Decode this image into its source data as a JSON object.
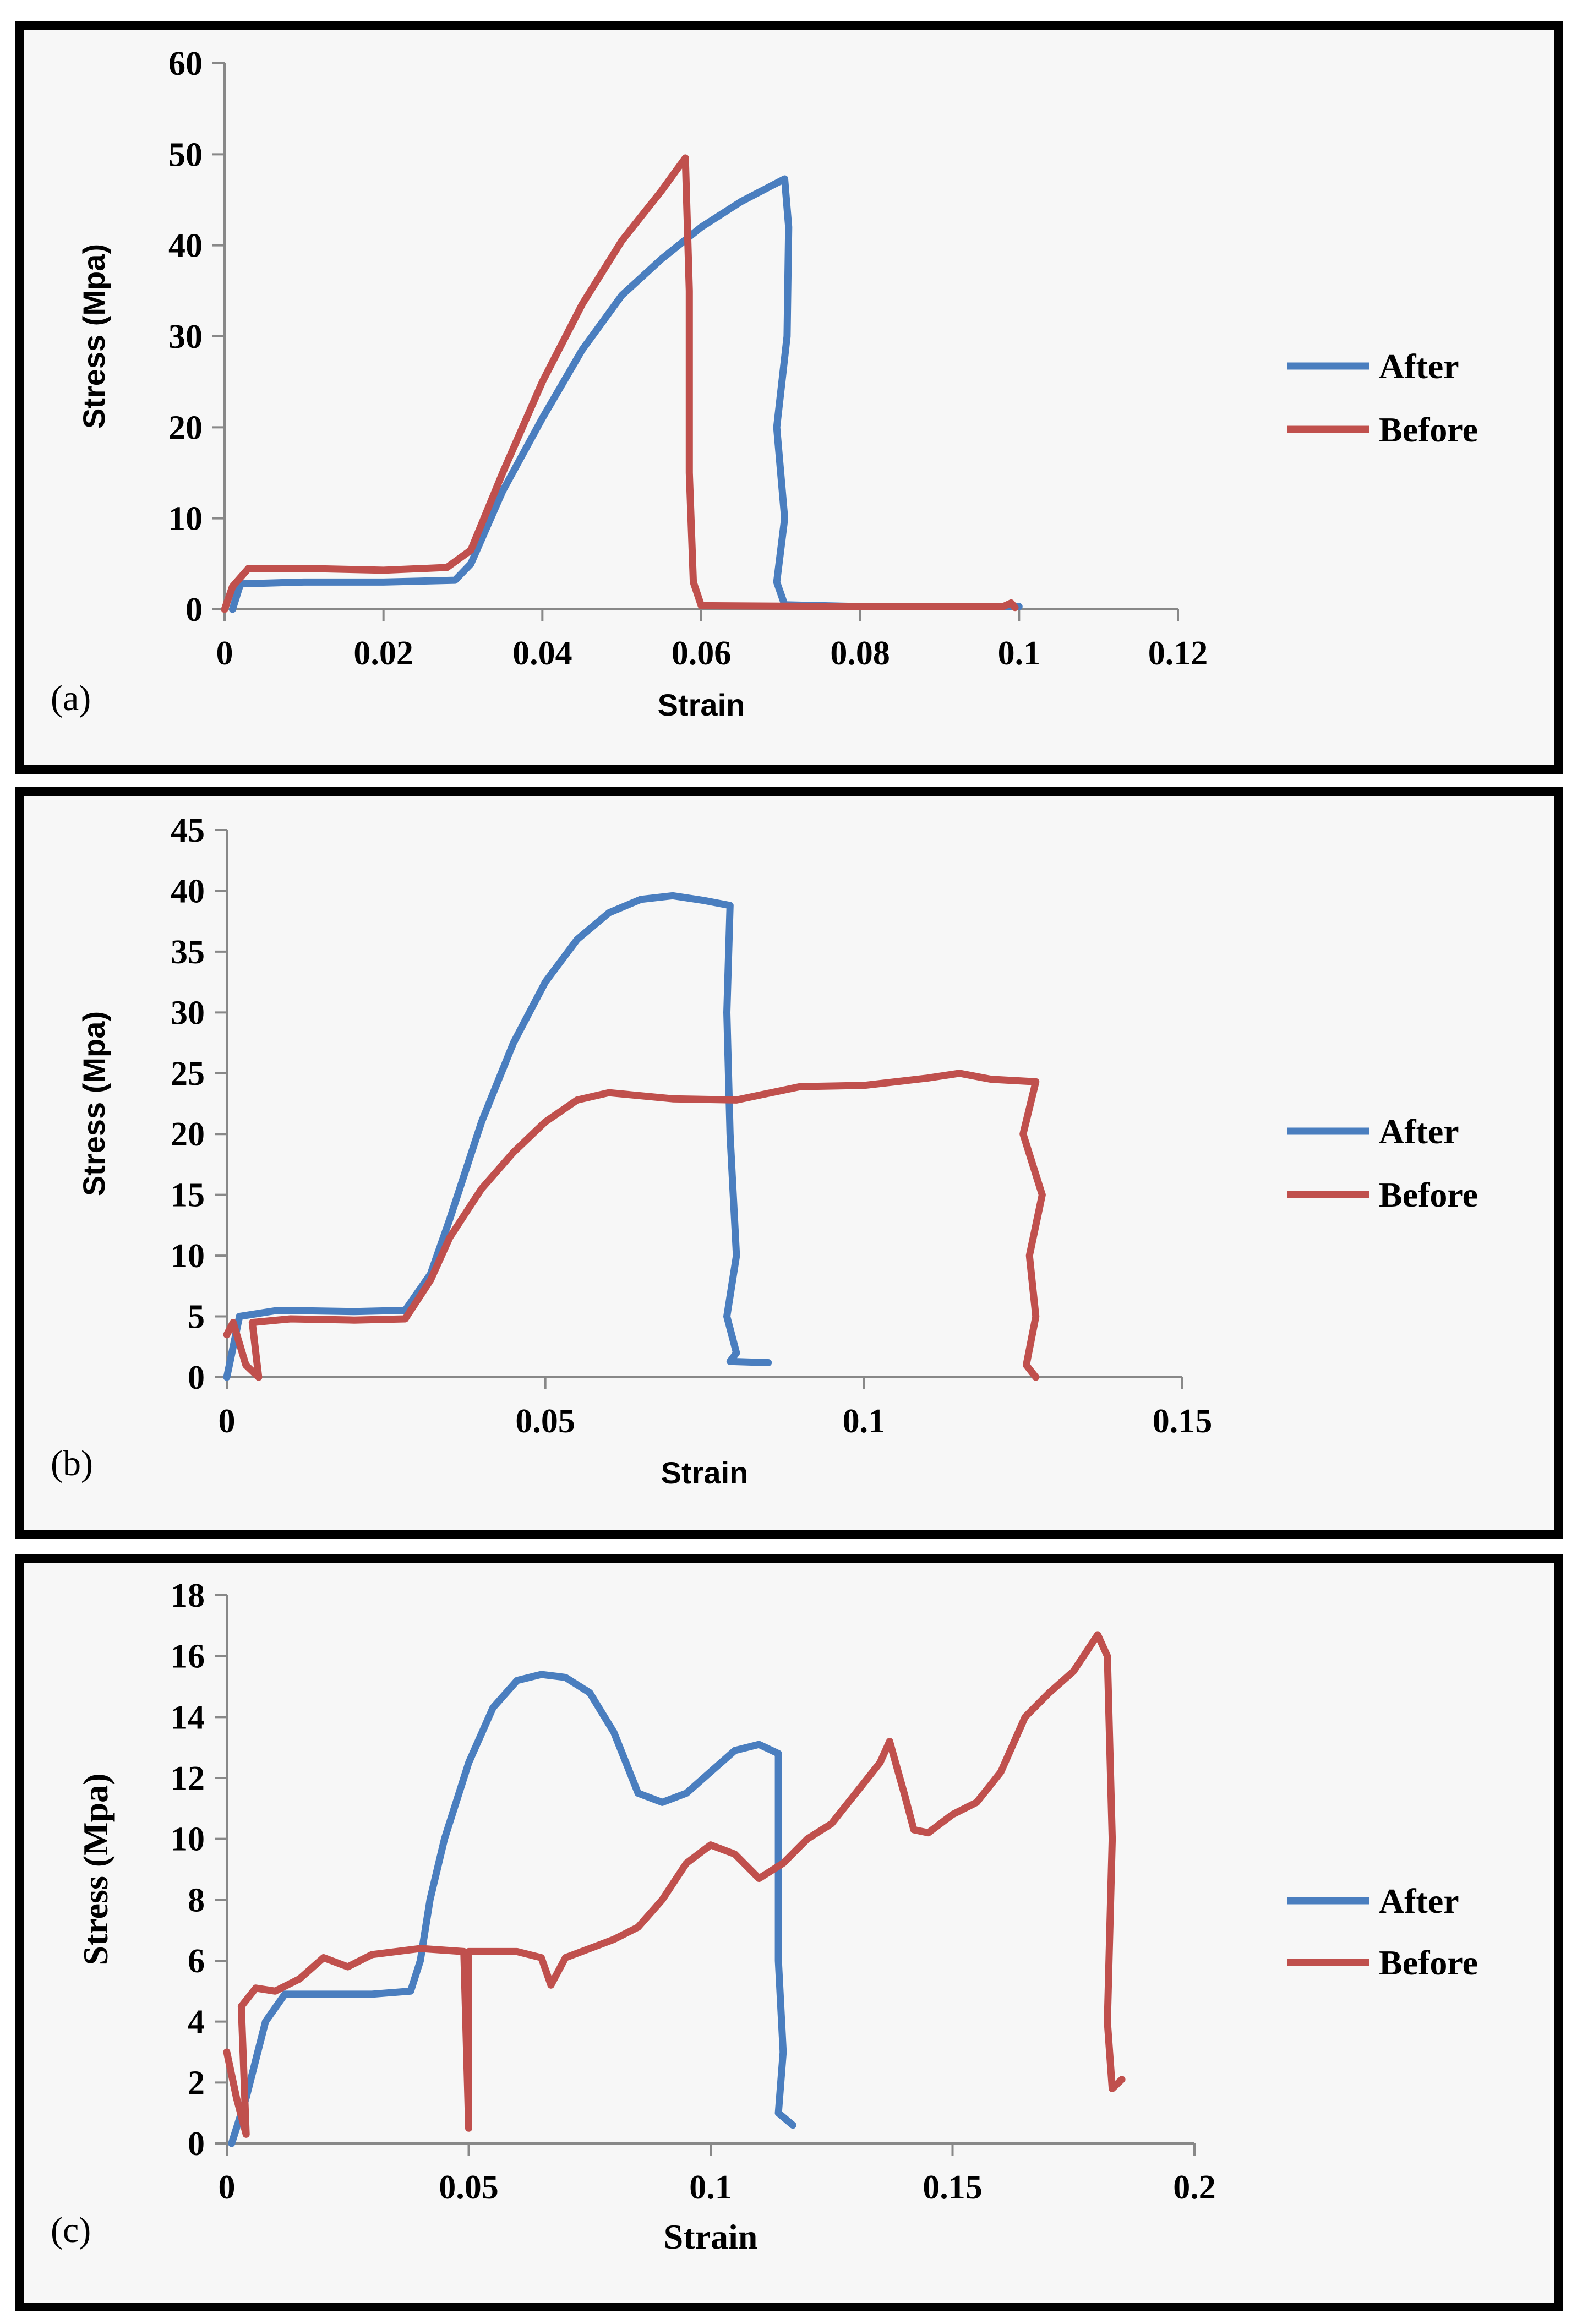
{
  "colors": {
    "after": "#4a7ebf",
    "before": "#c0504d"
  },
  "legend": {
    "after": "After",
    "before": "Before"
  },
  "chart_data": [
    {
      "type": "line",
      "panel_label": "(a)",
      "xlabel": "Strain",
      "ylabel": "Stress (Mpa)",
      "xlim": [
        0,
        0.12
      ],
      "ylim": [
        0,
        60
      ],
      "xticks": [
        "0",
        "0.02",
        "0.04",
        "0.06",
        "0.08",
        "0.1",
        "0.12"
      ],
      "xtick_values": [
        0,
        0.02,
        0.04,
        0.06,
        0.08,
        0.1,
        0.12
      ],
      "yticks": [
        "0",
        "10",
        "20",
        "30",
        "40",
        "50",
        "60"
      ],
      "ytick_values": [
        0,
        10,
        20,
        30,
        40,
        50,
        60
      ],
      "series": [
        {
          "name": "After",
          "points": [
            [
              0.001,
              0
            ],
            [
              0.002,
              2.8
            ],
            [
              0.01,
              3
            ],
            [
              0.02,
              3
            ],
            [
              0.029,
              3.2
            ],
            [
              0.031,
              5
            ],
            [
              0.035,
              13
            ],
            [
              0.04,
              21
            ],
            [
              0.045,
              28.5
            ],
            [
              0.05,
              34.5
            ],
            [
              0.055,
              38.5
            ],
            [
              0.06,
              42
            ],
            [
              0.065,
              44.8
            ],
            [
              0.0705,
              47.3
            ],
            [
              0.071,
              42
            ],
            [
              0.0708,
              30
            ],
            [
              0.0695,
              20
            ],
            [
              0.0705,
              10
            ],
            [
              0.0695,
              3
            ],
            [
              0.0705,
              0.5
            ],
            [
              0.08,
              0.3
            ],
            [
              0.09,
              0.3
            ],
            [
              0.1,
              0.3
            ]
          ]
        },
        {
          "name": "Before",
          "points": [
            [
              0,
              0
            ],
            [
              0.001,
              2.5
            ],
            [
              0.003,
              4.5
            ],
            [
              0.01,
              4.5
            ],
            [
              0.02,
              4.3
            ],
            [
              0.028,
              4.6
            ],
            [
              0.031,
              6.5
            ],
            [
              0.035,
              15
            ],
            [
              0.04,
              25
            ],
            [
              0.045,
              33.5
            ],
            [
              0.05,
              40.5
            ],
            [
              0.055,
              46
            ],
            [
              0.058,
              49.6
            ],
            [
              0.0585,
              35
            ],
            [
              0.0585,
              15
            ],
            [
              0.059,
              3
            ],
            [
              0.06,
              0.4
            ],
            [
              0.08,
              0.3
            ],
            [
              0.098,
              0.3
            ],
            [
              0.099,
              0.7
            ],
            [
              0.0995,
              0.2
            ]
          ]
        }
      ]
    },
    {
      "type": "line",
      "panel_label": "(b)",
      "xlabel": "Strain",
      "ylabel": "Stress (Mpa)",
      "xlim": [
        0,
        0.15
      ],
      "ylim": [
        0,
        45
      ],
      "xticks": [
        "0",
        "0.05",
        "0.1",
        "0.15"
      ],
      "xtick_values": [
        0,
        0.05,
        0.1,
        0.15
      ],
      "yticks": [
        "0",
        "5",
        "10",
        "15",
        "20",
        "25",
        "30",
        "35",
        "40",
        "45"
      ],
      "ytick_values": [
        0,
        5,
        10,
        15,
        20,
        25,
        30,
        35,
        40,
        45
      ],
      "series": [
        {
          "name": "After",
          "points": [
            [
              0,
              0
            ],
            [
              0.002,
              5
            ],
            [
              0.008,
              5.5
            ],
            [
              0.02,
              5.4
            ],
            [
              0.028,
              5.5
            ],
            [
              0.032,
              8.5
            ],
            [
              0.035,
              13
            ],
            [
              0.04,
              21
            ],
            [
              0.045,
              27.5
            ],
            [
              0.05,
              32.5
            ],
            [
              0.055,
              36
            ],
            [
              0.06,
              38.2
            ],
            [
              0.065,
              39.3
            ],
            [
              0.07,
              39.6
            ],
            [
              0.075,
              39.2
            ],
            [
              0.079,
              38.8
            ],
            [
              0.0785,
              30
            ],
            [
              0.079,
              20
            ],
            [
              0.08,
              10
            ],
            [
              0.0785,
              5
            ],
            [
              0.08,
              2
            ],
            [
              0.079,
              1.3
            ],
            [
              0.085,
              1.2
            ]
          ]
        },
        {
          "name": "Before",
          "points": [
            [
              0,
              3.5
            ],
            [
              0.001,
              4.5
            ],
            [
              0.003,
              1
            ],
            [
              0.005,
              0
            ],
            [
              0.004,
              4.5
            ],
            [
              0.01,
              4.8
            ],
            [
              0.02,
              4.7
            ],
            [
              0.028,
              4.8
            ],
            [
              0.032,
              8
            ],
            [
              0.035,
              11.5
            ],
            [
              0.04,
              15.5
            ],
            [
              0.045,
              18.5
            ],
            [
              0.05,
              21
            ],
            [
              0.055,
              22.8
            ],
            [
              0.06,
              23.4
            ],
            [
              0.07,
              22.9
            ],
            [
              0.08,
              22.8
            ],
            [
              0.09,
              23.9
            ],
            [
              0.1,
              24
            ],
            [
              0.11,
              24.6
            ],
            [
              0.115,
              25
            ],
            [
              0.12,
              24.5
            ],
            [
              0.127,
              24.3
            ],
            [
              0.125,
              20
            ],
            [
              0.128,
              15
            ],
            [
              0.126,
              10
            ],
            [
              0.127,
              5
            ],
            [
              0.1255,
              1
            ],
            [
              0.127,
              0
            ]
          ]
        }
      ]
    },
    {
      "type": "line",
      "panel_label": "(c)",
      "xlabel": "Strain",
      "ylabel": "Stress (Mpa)",
      "xlim": [
        0,
        0.2
      ],
      "ylim": [
        0,
        18
      ],
      "xticks": [
        "0",
        "0.05",
        "0.1",
        "0.15",
        "0.2"
      ],
      "xtick_values": [
        0,
        0.05,
        0.1,
        0.15,
        0.2
      ],
      "yticks": [
        "0",
        "2",
        "4",
        "6",
        "8",
        "10",
        "12",
        "14",
        "16",
        "18"
      ],
      "ytick_values": [
        0,
        2,
        4,
        6,
        8,
        10,
        12,
        14,
        16,
        18
      ],
      "series": [
        {
          "name": "After",
          "points": [
            [
              0.001,
              0
            ],
            [
              0.004,
              1.5
            ],
            [
              0.008,
              4
            ],
            [
              0.012,
              4.9
            ],
            [
              0.02,
              4.9
            ],
            [
              0.03,
              4.9
            ],
            [
              0.038,
              5
            ],
            [
              0.04,
              6
            ],
            [
              0.042,
              8
            ],
            [
              0.045,
              10
            ],
            [
              0.05,
              12.5
            ],
            [
              0.055,
              14.3
            ],
            [
              0.06,
              15.2
            ],
            [
              0.065,
              15.4
            ],
            [
              0.07,
              15.3
            ],
            [
              0.075,
              14.8
            ],
            [
              0.08,
              13.5
            ],
            [
              0.085,
              11.5
            ],
            [
              0.09,
              11.2
            ],
            [
              0.095,
              11.5
            ],
            [
              0.1,
              12.2
            ],
            [
              0.105,
              12.9
            ],
            [
              0.11,
              13.1
            ],
            [
              0.114,
              12.8
            ],
            [
              0.114,
              6
            ],
            [
              0.115,
              3
            ],
            [
              0.114,
              1
            ],
            [
              0.117,
              0.6
            ]
          ]
        },
        {
          "name": "Before",
          "points": [
            [
              0,
              3
            ],
            [
              0.002,
              1.5
            ],
            [
              0.004,
              0.3
            ],
            [
              0.003,
              4.5
            ],
            [
              0.006,
              5.1
            ],
            [
              0.01,
              5
            ],
            [
              0.015,
              5.4
            ],
            [
              0.02,
              6.1
            ],
            [
              0.025,
              5.8
            ],
            [
              0.03,
              6.2
            ],
            [
              0.04,
              6.4
            ],
            [
              0.049,
              6.3
            ],
            [
              0.05,
              0.5
            ],
            [
              0.05,
              6.3
            ],
            [
              0.06,
              6.3
            ],
            [
              0.065,
              6.1
            ],
            [
              0.067,
              5.2
            ],
            [
              0.07,
              6.1
            ],
            [
              0.075,
              6.4
            ],
            [
              0.08,
              6.7
            ],
            [
              0.085,
              7.1
            ],
            [
              0.09,
              8
            ],
            [
              0.095,
              9.2
            ],
            [
              0.1,
              9.8
            ],
            [
              0.105,
              9.5
            ],
            [
              0.11,
              8.7
            ],
            [
              0.115,
              9.2
            ],
            [
              0.12,
              10
            ],
            [
              0.125,
              10.5
            ],
            [
              0.13,
              11.5
            ],
            [
              0.135,
              12.5
            ],
            [
              0.137,
              13.2
            ],
            [
              0.14,
              11.5
            ],
            [
              0.142,
              10.3
            ],
            [
              0.145,
              10.2
            ],
            [
              0.15,
              10.8
            ],
            [
              0.155,
              11.2
            ],
            [
              0.16,
              12.2
            ],
            [
              0.165,
              14
            ],
            [
              0.17,
              14.8
            ],
            [
              0.175,
              15.5
            ],
            [
              0.18,
              16.7
            ],
            [
              0.182,
              16
            ],
            [
              0.183,
              10
            ],
            [
              0.182,
              4
            ],
            [
              0.183,
              1.8
            ],
            [
              0.185,
              2.1
            ]
          ]
        }
      ]
    }
  ]
}
